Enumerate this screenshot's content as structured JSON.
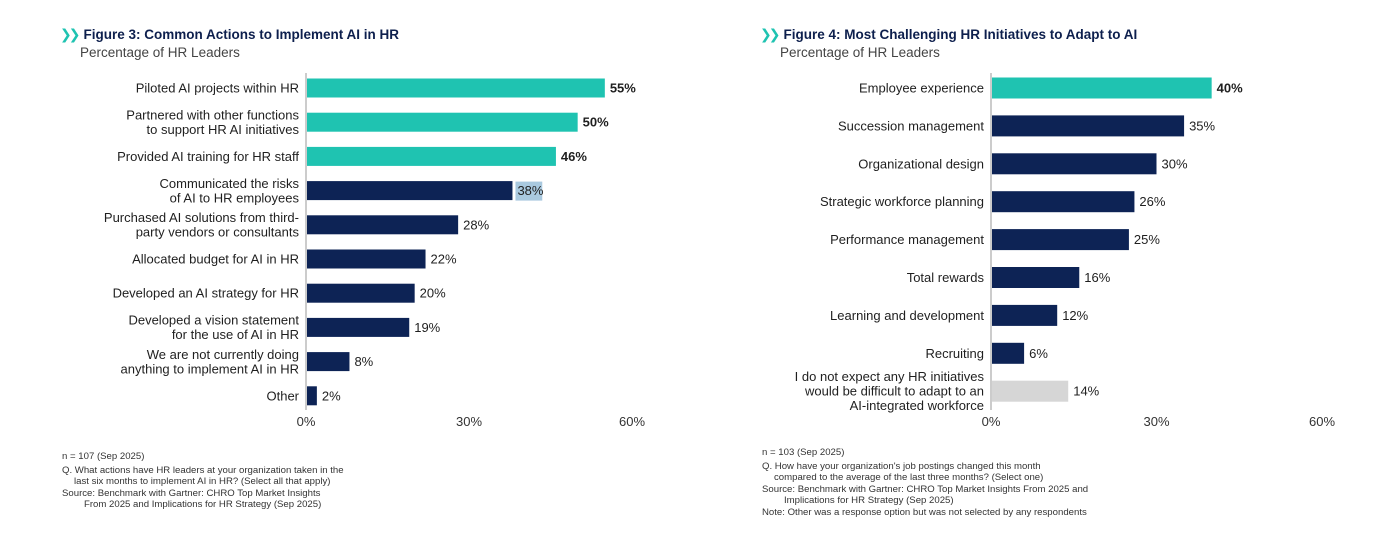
{
  "fig3": {
    "title": "Figure 3: Common Actions to Implement AI in HR",
    "subtitle": "Percentage of HR Leaders",
    "notes": {
      "n": "n = 107 (Sep 2025)",
      "q1": "Q. What actions have HR leaders at your organization taken in the",
      "q2": "last six months to implement AI in HR? (Select all that apply)",
      "s1": "Source: Benchmark with Gartner: CHRO Top Market Insights",
      "s2": "From 2025 and Implications for HR Strategy (Sep 2025)"
    }
  },
  "fig4": {
    "title": "Figure 4: Most Challenging HR Initiatives to Adapt to AI",
    "subtitle": "Percentage of HR Leaders",
    "notes": {
      "n": "n = 103 (Sep 2025)",
      "q1": "Q. How have your organization's job postings changed this month",
      "q2": "compared to the average of the last three months? (Select one)",
      "s1": "Source: Benchmark with Gartner: CHRO Top Market Insights From 2025 and",
      "s2": "Implications for HR Strategy (Sep 2025)",
      "note": "Note: Other was a response option but was not selected by any respondents"
    }
  },
  "colors": {
    "teal": "#1fc3b1",
    "navy": "#0d2355",
    "highlight": "#a9c9df",
    "gray": "#d6d6d6",
    "axis": "#999999"
  },
  "chart_data": [
    {
      "type": "bar",
      "orientation": "horizontal",
      "title": "Figure 3: Common Actions to Implement AI in HR",
      "subtitle": "Percentage of HR Leaders",
      "xlim": [
        0,
        60
      ],
      "xticks": [
        "0%",
        "30%",
        "60%"
      ],
      "categories": [
        [
          "Piloted AI projects within HR"
        ],
        [
          "Partnered with other functions",
          "to support HR AI initiatives"
        ],
        [
          "Provided AI training for HR staff"
        ],
        [
          "Communicated the risks",
          "of AI to HR employees"
        ],
        [
          "Purchased AI solutions from third-",
          "party vendors or consultants"
        ],
        [
          "Allocated budget for AI in HR"
        ],
        [
          "Developed an AI strategy for HR"
        ],
        [
          "Developed a vision statement",
          "for the use of AI in HR"
        ],
        [
          "We are not currently doing",
          "anything to implement AI in HR"
        ],
        [
          "Other"
        ]
      ],
      "values": [
        55,
        50,
        46,
        38,
        28,
        22,
        20,
        19,
        8,
        2
      ],
      "labels": [
        "55%",
        "50%",
        "46%",
        "38%",
        "28%",
        "22%",
        "20%",
        "19%",
        "8%",
        "2%"
      ],
      "colors": [
        "teal",
        "teal",
        "teal",
        "navy",
        "navy",
        "navy",
        "navy",
        "navy",
        "navy",
        "navy"
      ],
      "bold": [
        true,
        true,
        true,
        false,
        false,
        false,
        false,
        false,
        false,
        false
      ],
      "label_highlight": [
        false,
        false,
        false,
        true,
        false,
        false,
        false,
        false,
        false,
        false
      ]
    },
    {
      "type": "bar",
      "orientation": "horizontal",
      "title": "Figure 4: Most Challenging HR Initiatives to Adapt to AI",
      "subtitle": "Percentage of HR Leaders",
      "xlim": [
        0,
        60
      ],
      "xticks": [
        "0%",
        "30%",
        "60%"
      ],
      "categories": [
        [
          "Employee experience"
        ],
        [
          "Succession management"
        ],
        [
          "Organizational design"
        ],
        [
          "Strategic workforce planning"
        ],
        [
          "Performance management"
        ],
        [
          "Total rewards"
        ],
        [
          "Learning and development"
        ],
        [
          "Recruiting"
        ],
        [
          "I do not expect any HR initiatives",
          "would be difficult to adapt to an",
          "AI-integrated workforce"
        ]
      ],
      "values": [
        40,
        35,
        30,
        26,
        25,
        16,
        12,
        6,
        14
      ],
      "labels": [
        "40%",
        "35%",
        "30%",
        "26%",
        "25%",
        "16%",
        "12%",
        "6%",
        "14%"
      ],
      "colors": [
        "teal",
        "navy",
        "navy",
        "navy",
        "navy",
        "navy",
        "navy",
        "navy",
        "gray"
      ],
      "bold": [
        true,
        false,
        false,
        false,
        false,
        false,
        false,
        false,
        false
      ],
      "label_highlight": [
        false,
        false,
        false,
        false,
        false,
        false,
        false,
        false,
        false
      ]
    }
  ]
}
